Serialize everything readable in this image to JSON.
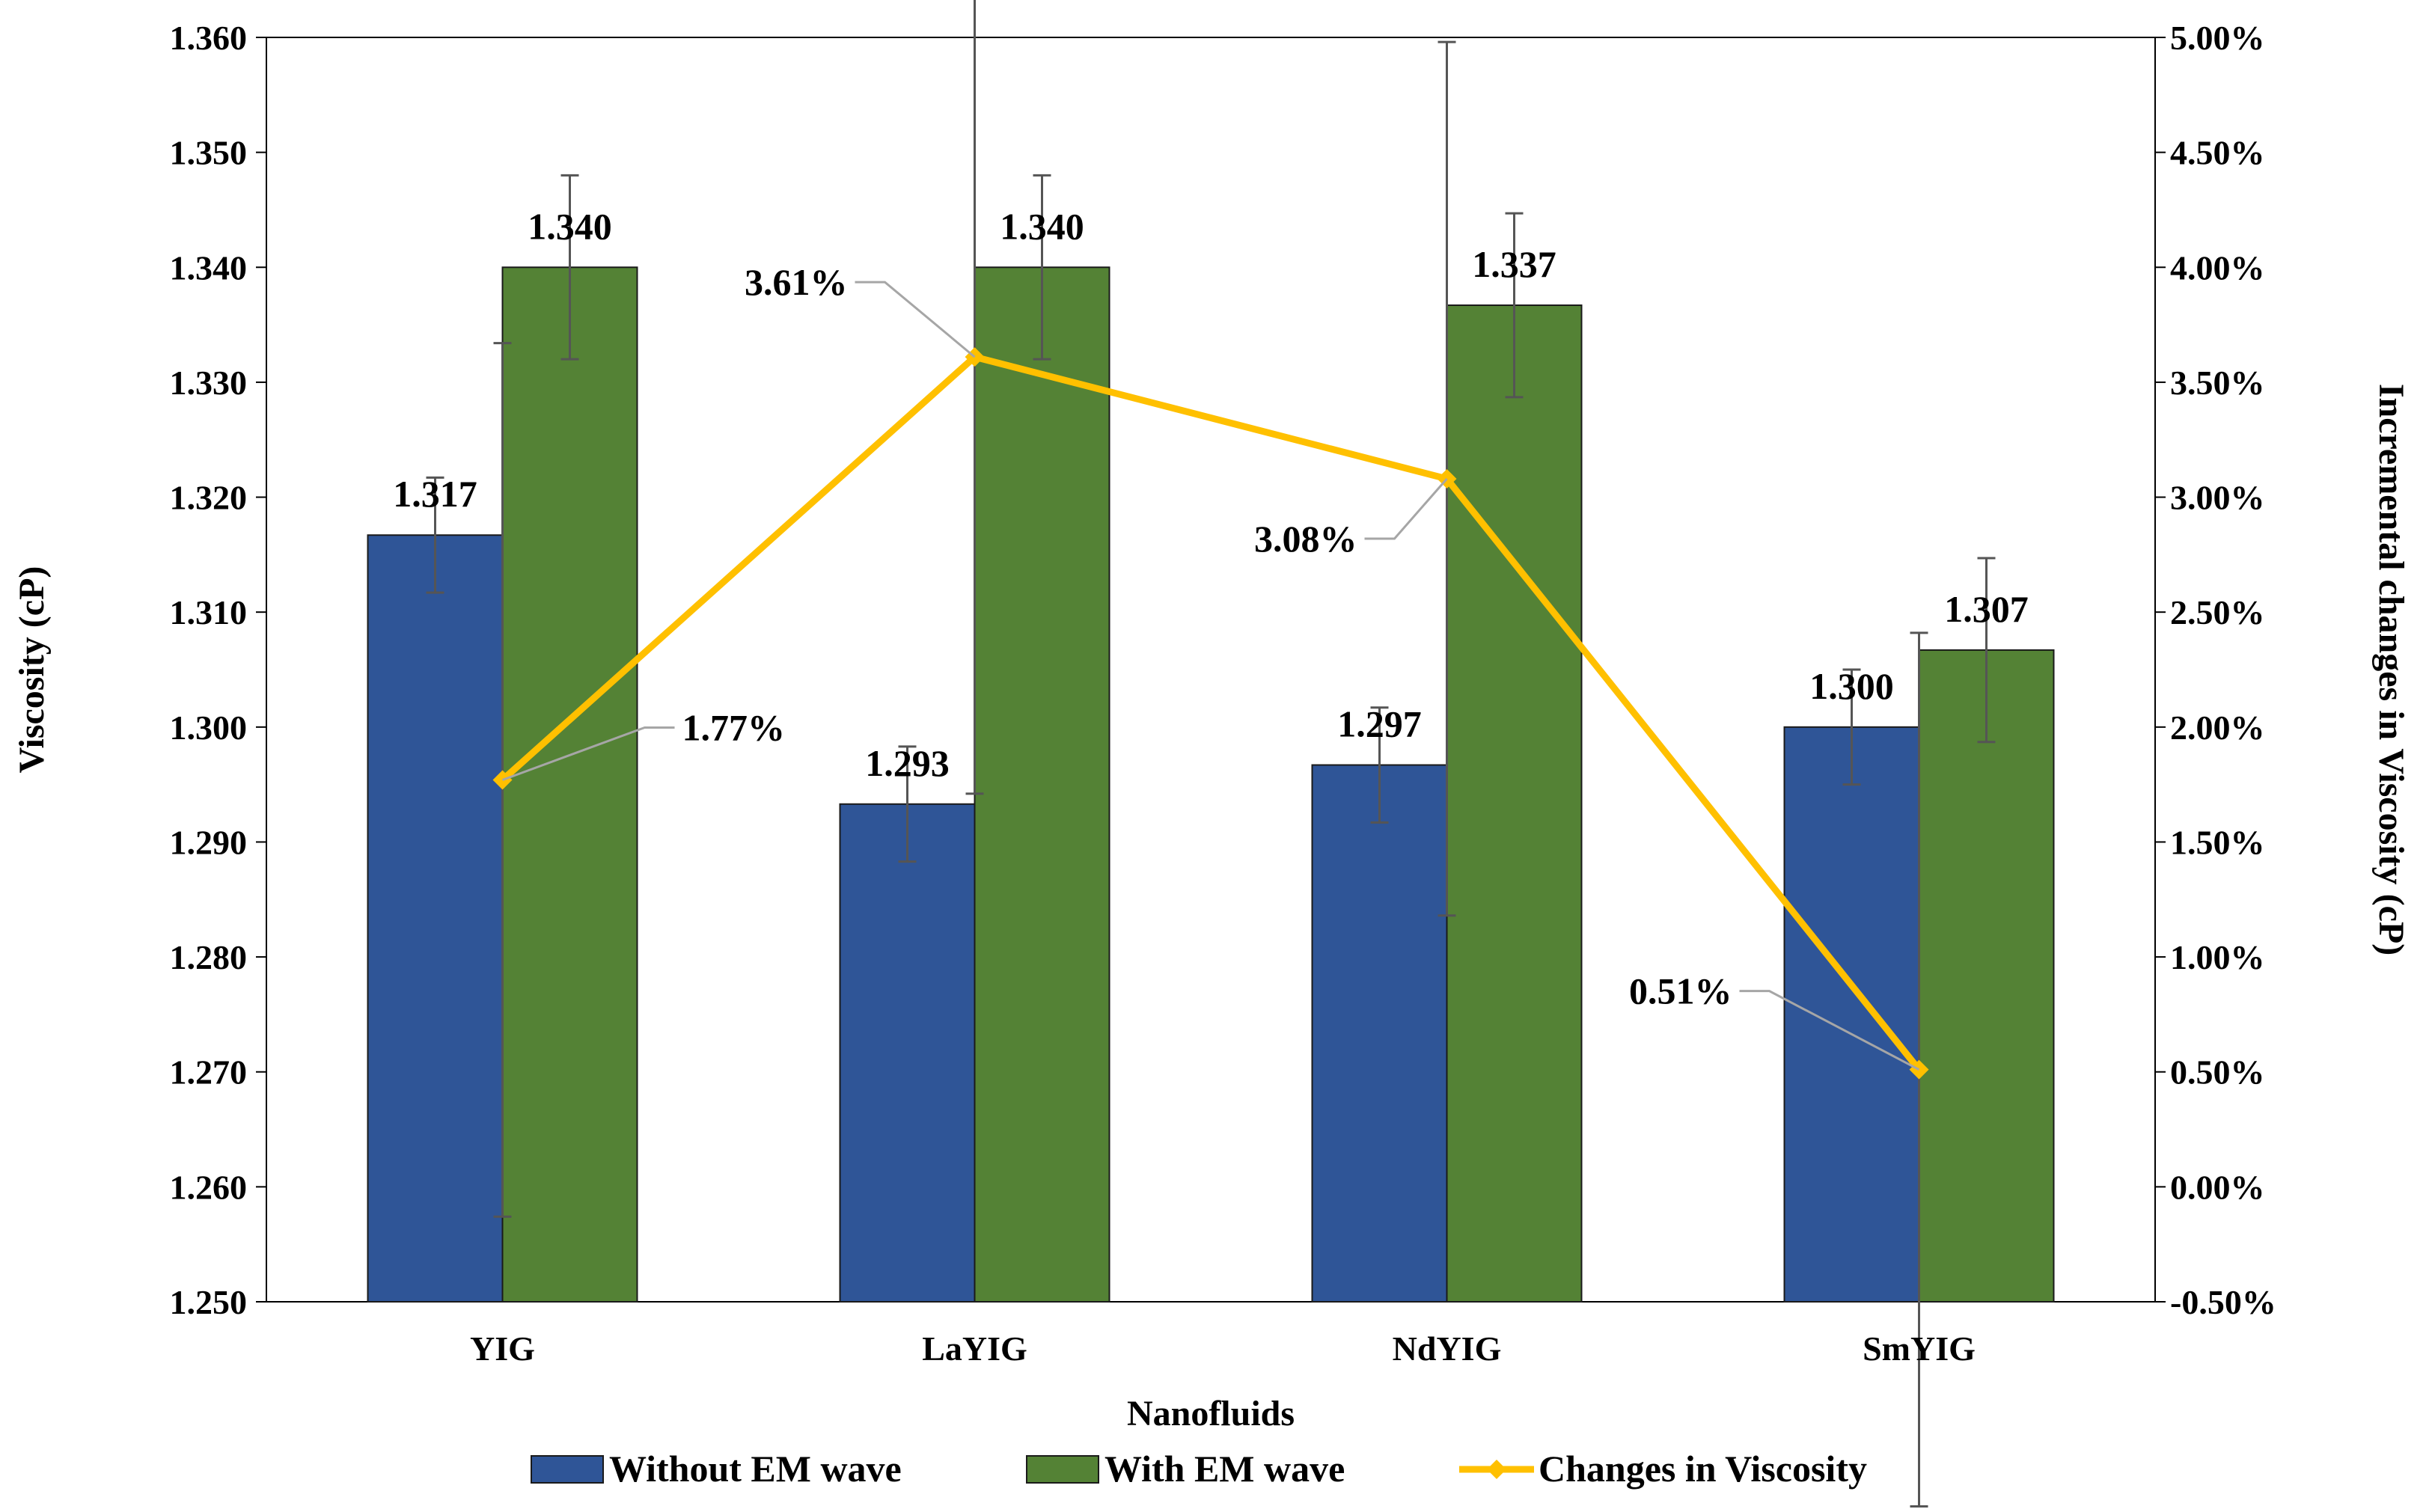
{
  "chart_data": {
    "type": "bar",
    "categories": [
      "YIG",
      "LaYIG",
      "NdYIG",
      "SmYIG"
    ],
    "xlabel": "Nanofluids",
    "ylabel": "Viscosity (cP)",
    "y2label": "Incremental changes in Viscosity (cP)",
    "ylim": [
      1.25,
      1.36
    ],
    "y2lim": [
      -0.005,
      0.05
    ],
    "yticks": [
      "1.250",
      "1.260",
      "1.270",
      "1.280",
      "1.290",
      "1.300",
      "1.310",
      "1.320",
      "1.330",
      "1.340",
      "1.350",
      "1.360"
    ],
    "y2ticks": [
      "-0.50%",
      "0.00%",
      "0.50%",
      "1.00%",
      "1.50%",
      "2.00%",
      "2.50%",
      "3.00%",
      "3.50%",
      "4.00%",
      "4.50%",
      "5.00%"
    ],
    "series": [
      {
        "name": "Without EM wave",
        "type": "bar",
        "color": "#2F5597",
        "values": [
          1.3167,
          1.2933,
          1.2967,
          1.3
        ],
        "labels": [
          "1.317",
          "1.293",
          "1.297",
          "1.300"
        ],
        "error": [
          0.005,
          0.005,
          0.005,
          0.005
        ]
      },
      {
        "name": "With EM wave",
        "type": "bar",
        "color": "#548235",
        "values": [
          1.34,
          1.34,
          1.3367,
          1.3067
        ],
        "labels": [
          "1.340",
          "1.340",
          "1.337",
          "1.307"
        ],
        "error": [
          0.008,
          0.008,
          0.008,
          0.008
        ]
      },
      {
        "name": "Changes in Viscosity",
        "type": "line",
        "axis": "secondary",
        "color": "#FFC000",
        "values": [
          0.0177,
          0.0361,
          0.0308,
          0.0051
        ],
        "labels": [
          "1.77%",
          "3.61%",
          "3.08%",
          "0.51%"
        ],
        "error": [
          0.019,
          0.019,
          0.019,
          0.019
        ]
      }
    ],
    "legend_position": "bottom"
  }
}
